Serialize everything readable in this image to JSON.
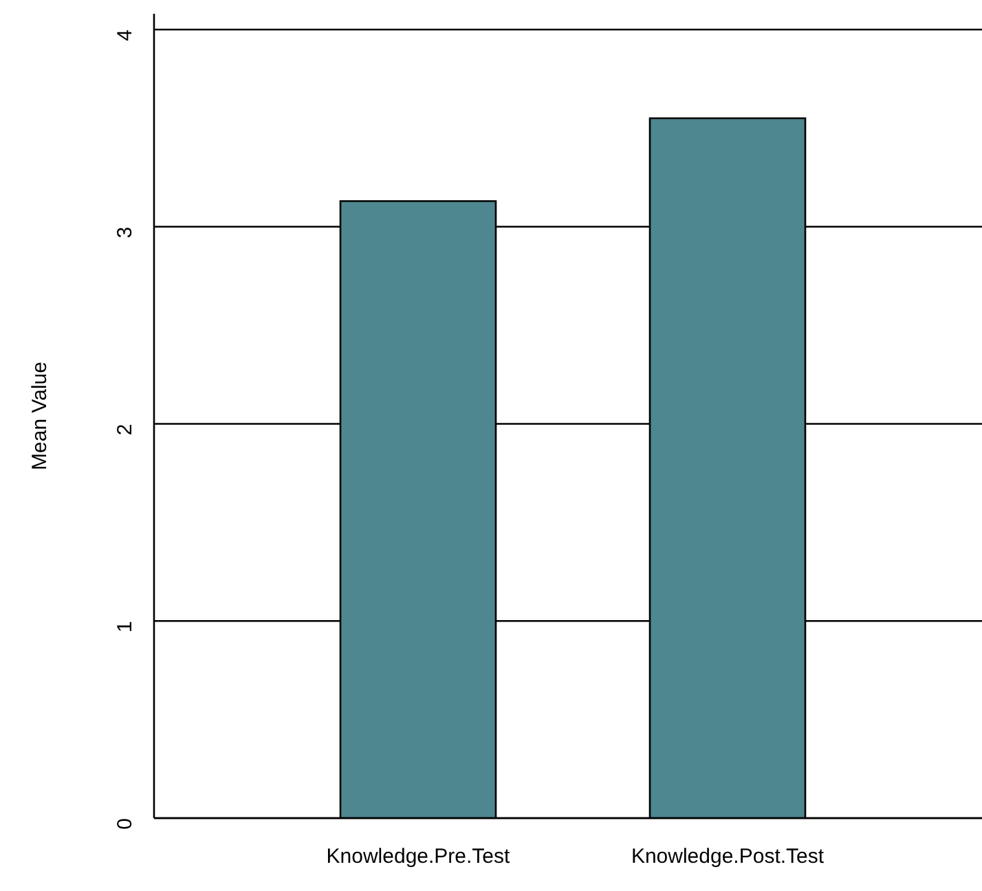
{
  "chart_data": {
    "type": "bar",
    "ylabel": "Mean Value",
    "categories": [
      "Knowledge.Pre.Test",
      "Knowledge.Post.Test"
    ],
    "values": [
      3.13,
      3.55
    ],
    "color": "#4e8790",
    "ylim": [
      0,
      4.08
    ],
    "yticks": [
      0,
      1,
      2,
      3,
      4
    ],
    "grid": "y"
  }
}
